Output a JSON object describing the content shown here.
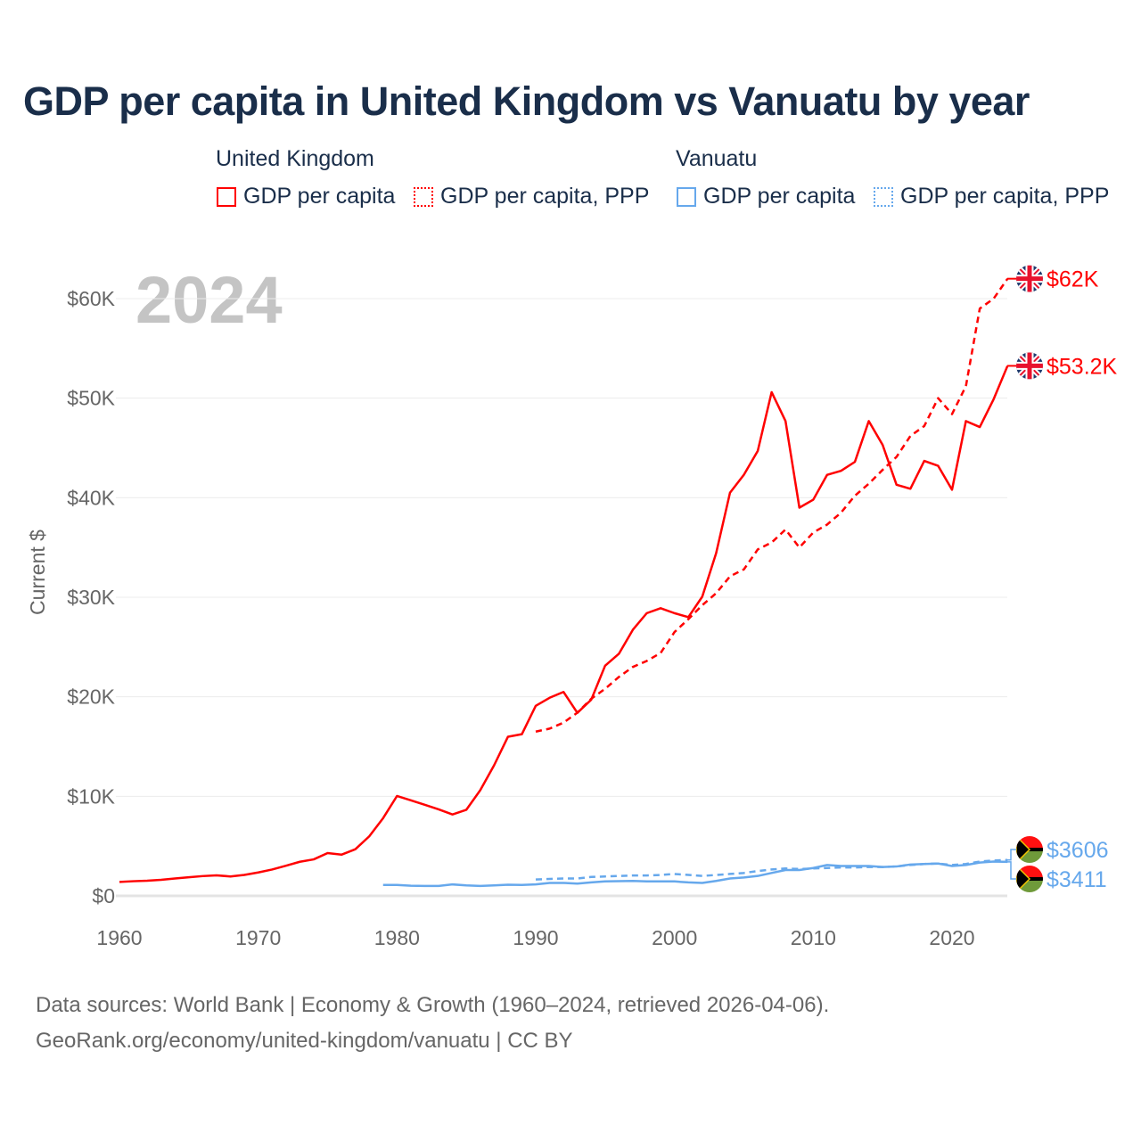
{
  "chart_data": {
    "type": "line",
    "title": "GDP per capita in United Kingdom vs Vanuatu by year",
    "xlabel": "",
    "ylabel": "Current $",
    "xlim": [
      1960,
      2024
    ],
    "ylim": [
      0,
      65000
    ],
    "x_ticks": [
      1960,
      1970,
      1980,
      1990,
      2000,
      2010,
      2020
    ],
    "x_tick_labels": [
      "1960",
      "1970",
      "1980",
      "1990",
      "2000",
      "2010",
      "2020"
    ],
    "y_ticks": [
      0,
      10000,
      20000,
      30000,
      40000,
      50000,
      60000
    ],
    "y_tick_labels": [
      "$0",
      "$10K",
      "$20K",
      "$30K",
      "$40K",
      "$50K",
      "$60K"
    ],
    "grid": true,
    "year_label": "2024",
    "legend": {
      "placement": "top",
      "groups": [
        {
          "country": "United Kingdom",
          "items": [
            "GDP per capita",
            "GDP per capita, PPP"
          ]
        },
        {
          "country": "Vanuatu",
          "items": [
            "GDP per capita",
            "GDP per capita, PPP"
          ]
        }
      ]
    },
    "series": [
      {
        "name": "United Kingdom GDP per capita",
        "color": "#ff0000",
        "dash": false,
        "start": 1960,
        "end_label": "$53.2K",
        "flag": "uk",
        "values": [
          1398,
          1472,
          1525,
          1613,
          1748,
          1874,
          1987,
          2059,
          1951,
          2101,
          2348,
          2649,
          3030,
          3426,
          3666,
          4300,
          4138,
          4682,
          5976,
          7805,
          10032,
          9600,
          9146,
          8691,
          8179,
          8652,
          10611,
          13118,
          15987,
          16239,
          19095,
          19900,
          20487,
          18389,
          19709,
          23123,
          24332,
          26734,
          28400,
          28900,
          28400,
          28000,
          30057,
          34420,
          40500,
          42300,
          44700,
          50600,
          47700,
          39000,
          39800,
          42300,
          42700,
          43600,
          47700,
          45300,
          41300,
          40900,
          43700,
          43200,
          40800,
          47700,
          47100,
          49900,
          53246
        ]
      },
      {
        "name": "United Kingdom GDP per capita, PPP",
        "color": "#ff0000",
        "dash": true,
        "start": 1990,
        "end_label": "$62K",
        "flag": "uk",
        "values": [
          16500,
          16800,
          17400,
          18400,
          19800,
          20800,
          22000,
          23000,
          23600,
          24400,
          26500,
          27800,
          29200,
          30400,
          32100,
          32800,
          34800,
          35500,
          36800,
          35000,
          36500,
          37300,
          38500,
          40200,
          41400,
          42800,
          44100,
          46200,
          47200,
          50000,
          48400,
          51200,
          59000,
          60000,
          62000
        ]
      },
      {
        "name": "Vanuatu GDP per capita",
        "color": "#66a8ec",
        "dash": false,
        "start": 1979,
        "end_label": "$3411",
        "flag": "vu",
        "values": [
          1100,
          1100,
          1020,
          1000,
          1000,
          1150,
          1050,
          1000,
          1050,
          1120,
          1100,
          1150,
          1300,
          1300,
          1230,
          1350,
          1450,
          1480,
          1500,
          1450,
          1450,
          1450,
          1350,
          1300,
          1500,
          1750,
          1850,
          2000,
          2300,
          2600,
          2600,
          2800,
          3100,
          3000,
          3000,
          3000,
          2900,
          2950,
          3150,
          3200,
          3250,
          3000,
          3100,
          3350,
          3450,
          3411
        ]
      },
      {
        "name": "Vanuatu GDP per capita, PPP",
        "color": "#66a8ec",
        "dash": true,
        "start": 1990,
        "end_label": "$3606",
        "flag": "vu",
        "values": [
          1650,
          1700,
          1750,
          1750,
          1900,
          1950,
          2000,
          2050,
          2050,
          2100,
          2200,
          2100,
          2000,
          2100,
          2200,
          2300,
          2500,
          2650,
          2750,
          2700,
          2750,
          2800,
          2850,
          2850,
          2900,
          2900,
          2950,
          3100,
          3200,
          3250,
          3100,
          3200,
          3450,
          3550,
          3606
        ]
      }
    ]
  },
  "legend_labels": {
    "uk_group": "United Kingdom",
    "uk_gdp": "GDP per capita",
    "uk_ppp": "GDP per capita, PPP",
    "vu_group": "Vanuatu",
    "vu_gdp": "GDP per capita",
    "vu_ppp": "GDP per capita, PPP"
  },
  "footer": {
    "line1": "Data sources: World Bank | Economy & Growth (1960–2024, retrieved 2026-04-06).",
    "line2": "GeoRank.org/economy/united-kingdom/vanuatu | CC BY"
  }
}
